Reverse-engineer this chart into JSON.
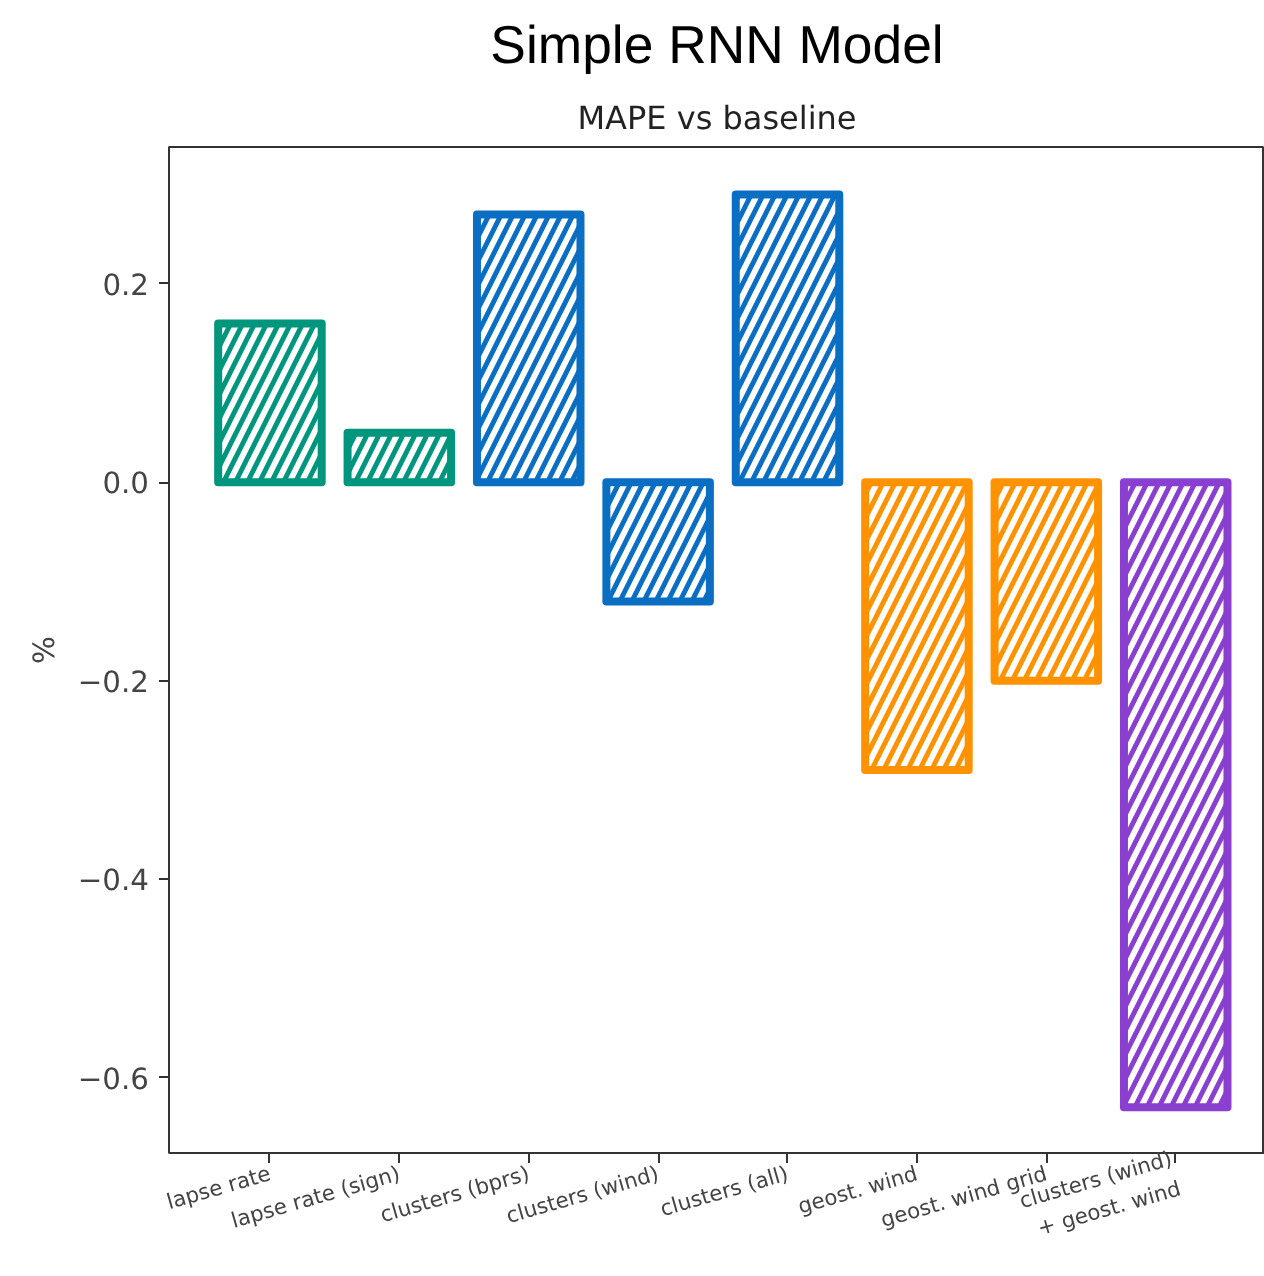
{
  "chart_data": {
    "type": "bar",
    "title": "Simple RNN Model",
    "subtitle": "MAPE vs baseline",
    "ylabel": "%",
    "categories": [
      "lapse rate",
      "lapse rate (sign)",
      "clusters (bprs)",
      "clusters (wind)",
      "clusters (all)",
      "geost. wind",
      "geost. wind grid",
      "clusters (wind)\n+ geost. wind"
    ],
    "values": [
      0.16,
      0.05,
      0.27,
      -0.12,
      0.29,
      -0.29,
      -0.2,
      -0.63
    ],
    "colors": [
      "#00967d",
      "#00967d",
      "#0a6fc2",
      "#0a6fc2",
      "#0a6fc2",
      "#ff9200",
      "#ff9200",
      "#8a3fd1"
    ],
    "ylim": [
      -0.676,
      0.338
    ],
    "yticks": [
      {
        "value": -0.6,
        "label": "−0.6"
      },
      {
        "value": -0.4,
        "label": "−0.4"
      },
      {
        "value": -0.2,
        "label": "−0.2"
      },
      {
        "value": 0,
        "label": "0.0"
      },
      0.2
    ],
    "grid": false
  }
}
